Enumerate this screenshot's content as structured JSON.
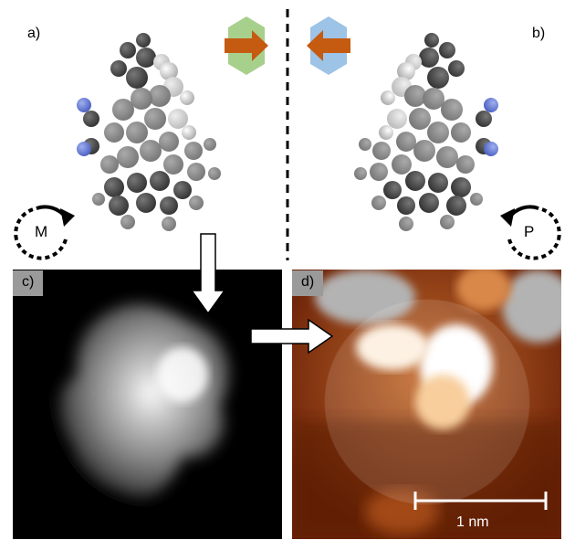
{
  "panels": {
    "a": {
      "label": "a)",
      "chirality": "M"
    },
    "b": {
      "label": "b)",
      "chirality": "P"
    },
    "c": {
      "label": "c)"
    },
    "d": {
      "label": "d)",
      "scale_bar": "1 nm"
    }
  },
  "colors": {
    "green_hex": "#a8d08d",
    "blue_hex": "#9dc3e6",
    "arrow_brown": "#c55a11",
    "nitrogen_blue": "#6a7fd6"
  },
  "icons": [
    "hexagon-right-arrow-icon",
    "hexagon-left-arrow-icon",
    "rotation-arrow-icon"
  ]
}
